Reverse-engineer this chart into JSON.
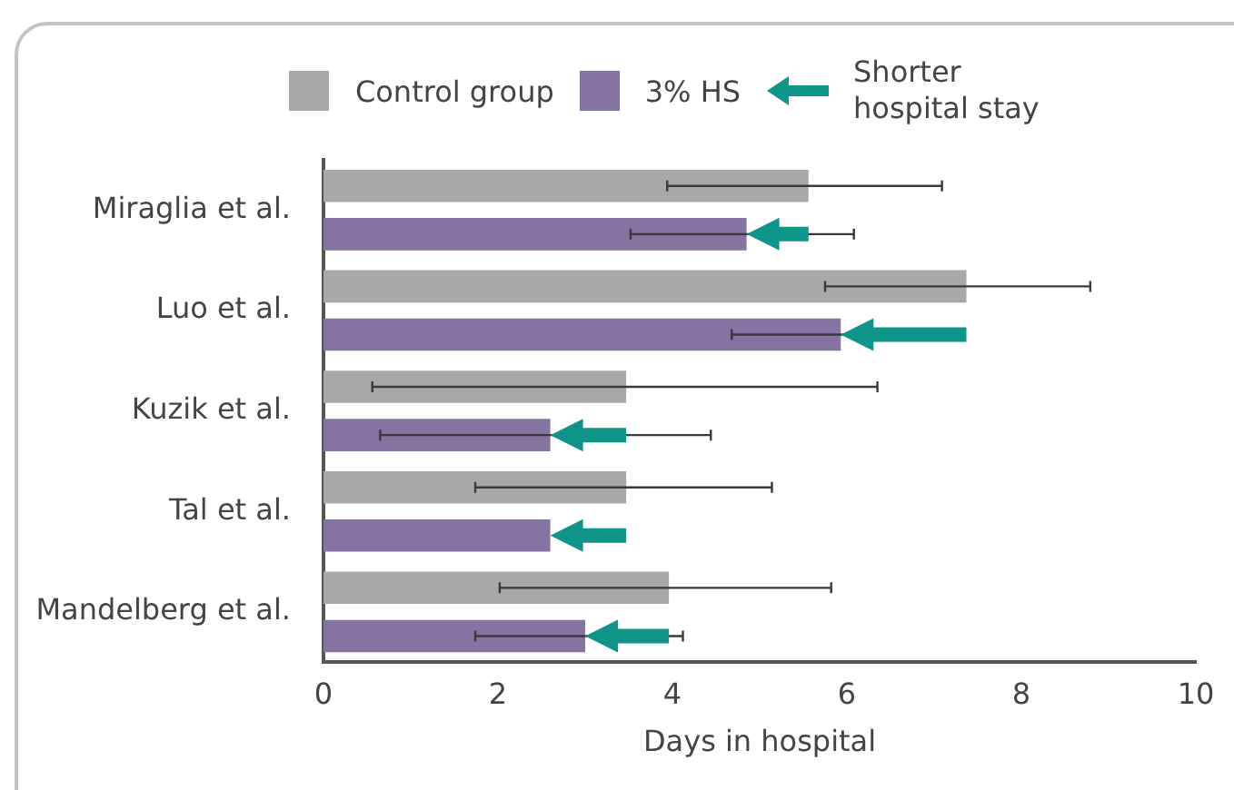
{
  "chart_data": {
    "type": "bar",
    "orientation": "horizontal",
    "xlabel": "Days in hospital",
    "categories": [
      "Miraglia et al.",
      "Luo et al.",
      "Kuzik et al.",
      "Tal et al.",
      "Mandelberg et al."
    ],
    "series": [
      {
        "name": "Control group",
        "color": "#a7a8aa",
        "values": [
          5.56,
          7.37,
          3.47,
          3.47,
          3.96
        ],
        "errors": [
          [
            3.94,
            7.09
          ],
          [
            5.75,
            8.79
          ],
          [
            0.56,
            6.35
          ],
          [
            1.74,
            5.14
          ],
          [
            2.02,
            5.82
          ]
        ]
      },
      {
        "name": "3% HS",
        "color": "#8573a1",
        "values": [
          4.85,
          5.93,
          2.6,
          2.6,
          3.0
        ],
        "errors": [
          [
            3.52,
            6.08
          ],
          1.25,
          [
            0.65,
            4.44
          ],
          null,
          [
            1.74,
            4.12
          ]
        ]
      }
    ],
    "xlim": [
      0,
      10
    ],
    "xticks": [
      0,
      2,
      4,
      6,
      8,
      10
    ],
    "grid": false,
    "legend": "top",
    "annotations": [
      "Shorter hospital stay"
    ]
  }
}
